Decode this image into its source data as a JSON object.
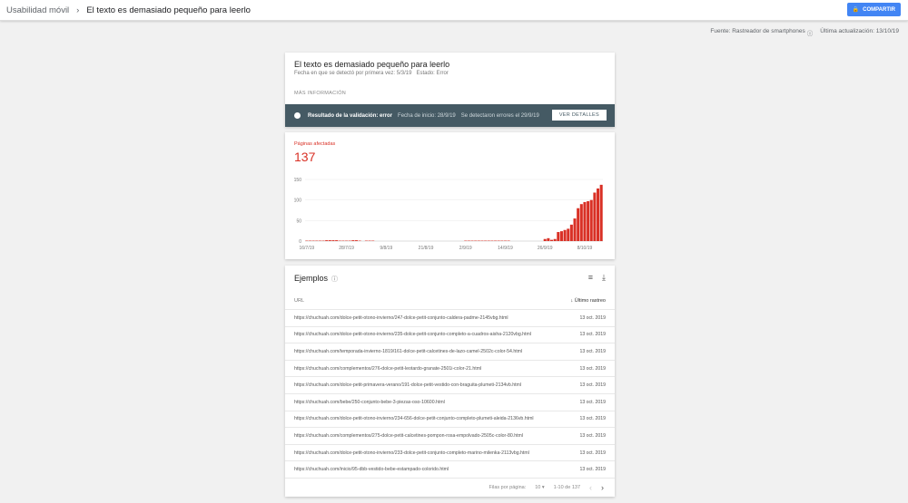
{
  "topbar": {
    "crumb": "Usabilidad móvil",
    "title": "El texto es demasiado pequeño para leerlo",
    "share": "COMPARTIR"
  },
  "meta": {
    "source": "Fuente: Rastreador de smartphones",
    "updated": "Última actualización: 13/10/19"
  },
  "issue": {
    "title": "El texto es demasiado pequeño para leerlo",
    "first_detected": "Fecha en que se detectó por primera vez: 5/3/19",
    "status": "Estado: Error",
    "more": "MÁS INFORMACIÓN"
  },
  "validation": {
    "result": "Resultado de la validación: error",
    "start": "Fecha de inicio: 28/9/19",
    "detected": "Se detectaron errores el 29/9/19",
    "button": "VER DETALLES"
  },
  "affected": {
    "label": "Páginas afectadas",
    "count": "137"
  },
  "chart_data": {
    "type": "bar",
    "color": "#d93025",
    "ylim": [
      0,
      150
    ],
    "yticks": [
      0,
      50,
      100,
      150
    ],
    "xtick_labels": [
      "16/7/19",
      "28/7/19",
      "9/8/19",
      "21/8/19",
      "2/9/19",
      "14/9/19",
      "26/9/19",
      "8/10/19"
    ],
    "x": [
      "16/7/19",
      "17/7/19",
      "18/7/19",
      "19/7/19",
      "20/7/19",
      "21/7/19",
      "22/7/19",
      "23/7/19",
      "24/7/19",
      "25/7/19",
      "26/7/19",
      "27/7/19",
      "28/7/19",
      "29/7/19",
      "30/7/19",
      "31/7/19",
      "1/8/19",
      "2/8/19",
      "3/8/19",
      "4/8/19",
      "5/8/19",
      "6/8/19",
      "7/8/19",
      "8/8/19",
      "9/8/19",
      "10/8/19",
      "11/8/19",
      "12/8/19",
      "13/8/19",
      "14/8/19",
      "15/8/19",
      "16/8/19",
      "17/8/19",
      "18/8/19",
      "19/8/19",
      "20/8/19",
      "21/8/19",
      "22/8/19",
      "23/8/19",
      "24/8/19",
      "25/8/19",
      "26/8/19",
      "27/8/19",
      "28/8/19",
      "29/8/19",
      "30/8/19",
      "31/8/19",
      "1/9/19",
      "2/9/19",
      "3/9/19",
      "4/9/19",
      "5/9/19",
      "6/9/19",
      "7/9/19",
      "8/9/19",
      "9/9/19",
      "10/9/19",
      "11/9/19",
      "12/9/19",
      "13/9/19",
      "14/9/19",
      "15/9/19",
      "16/9/19",
      "17/9/19",
      "18/9/19",
      "19/9/19",
      "20/9/19",
      "21/9/19",
      "22/9/19",
      "23/9/19",
      "24/9/19",
      "25/9/19",
      "26/9/19",
      "27/9/19",
      "28/9/19",
      "29/9/19",
      "30/9/19",
      "1/10/19",
      "2/10/19",
      "3/10/19",
      "4/10/19",
      "5/10/19",
      "6/10/19",
      "7/10/19",
      "8/10/19",
      "9/10/19",
      "10/10/19",
      "11/10/19",
      "12/10/19",
      "13/10/19"
    ],
    "values": [
      1,
      1,
      1,
      1,
      1,
      1,
      2,
      2,
      2,
      2,
      1,
      1,
      1,
      1,
      2,
      2,
      1,
      0,
      1,
      1,
      1,
      0,
      0,
      0,
      0,
      0,
      0,
      0,
      0,
      0,
      0,
      0,
      0,
      0,
      0,
      0,
      0,
      0,
      0,
      0,
      0,
      0,
      0,
      0,
      0,
      0,
      0,
      0,
      1,
      1,
      1,
      1,
      1,
      1,
      1,
      1,
      1,
      1,
      1,
      1,
      1,
      1,
      0,
      0,
      0,
      0,
      0,
      0,
      0,
      0,
      0,
      0,
      5,
      7,
      3,
      5,
      22,
      24,
      27,
      30,
      40,
      55,
      80,
      90,
      95,
      97,
      100,
      118,
      128,
      137
    ]
  },
  "examples": {
    "title": "Ejemplos",
    "col_url": "URL",
    "col_date": "Último rastreo",
    "rows": [
      {
        "url": "https://chuchuah.com/dolce-petit-otono-invierno/247-dolce-petit-conjunto-caldera-padme-2145vbg.html",
        "date": "13 oct. 2019"
      },
      {
        "url": "https://chuchuah.com/dolce-petit-otono-invierno/235-dolce-petit-conjunto-completo-a-cuadros-aisha-2120vbg.html",
        "date": "13 oct. 2019"
      },
      {
        "url": "https://chuchuah.com/temporada-invierno-1819/161-dolce-petit-calcetines-de-lazo-camel-2502c-color-54.html",
        "date": "13 oct. 2019"
      },
      {
        "url": "https://chuchuah.com/complementos/276-dolce-petit-leotardo-granate-2501i-color-21.html",
        "date": "13 oct. 2019"
      },
      {
        "url": "https://chuchuah.com/dolce-petit-primavera-verano/191-dolce-petit-vestido-con-braguita-plumeti-2134vb.html",
        "date": "13 oct. 2019"
      },
      {
        "url": "https://chuchuah.com/bebe/250-conjunto-bebe-3-piezas-oso-10600.html",
        "date": "13 oct. 2019"
      },
      {
        "url": "https://chuchuah.com/dolce-petit-otono-invierno/234-656-dolce-petit-conjunto-completo-plumeti-aleida-2136vb.html",
        "date": "13 oct. 2019"
      },
      {
        "url": "https://chuchuah.com/complementos/275-dolce-petit-calcetines-pompon-rosa-empolvado-2505c-color-80.html",
        "date": "13 oct. 2019"
      },
      {
        "url": "https://chuchuah.com/dolce-petit-otono-invierno/233-dolce-petit-conjunto-completo-marino-milenka-2113vbg.html",
        "date": "13 oct. 2019"
      },
      {
        "url": "https://chuchuah.com/inicio/95-dbb-vestido-bebe-estampado-colorido.html",
        "date": "13 oct. 2019"
      }
    ],
    "rows_per_page_label": "Filas por página:",
    "rows_per_page": "10",
    "range": "1-10 de 137"
  }
}
